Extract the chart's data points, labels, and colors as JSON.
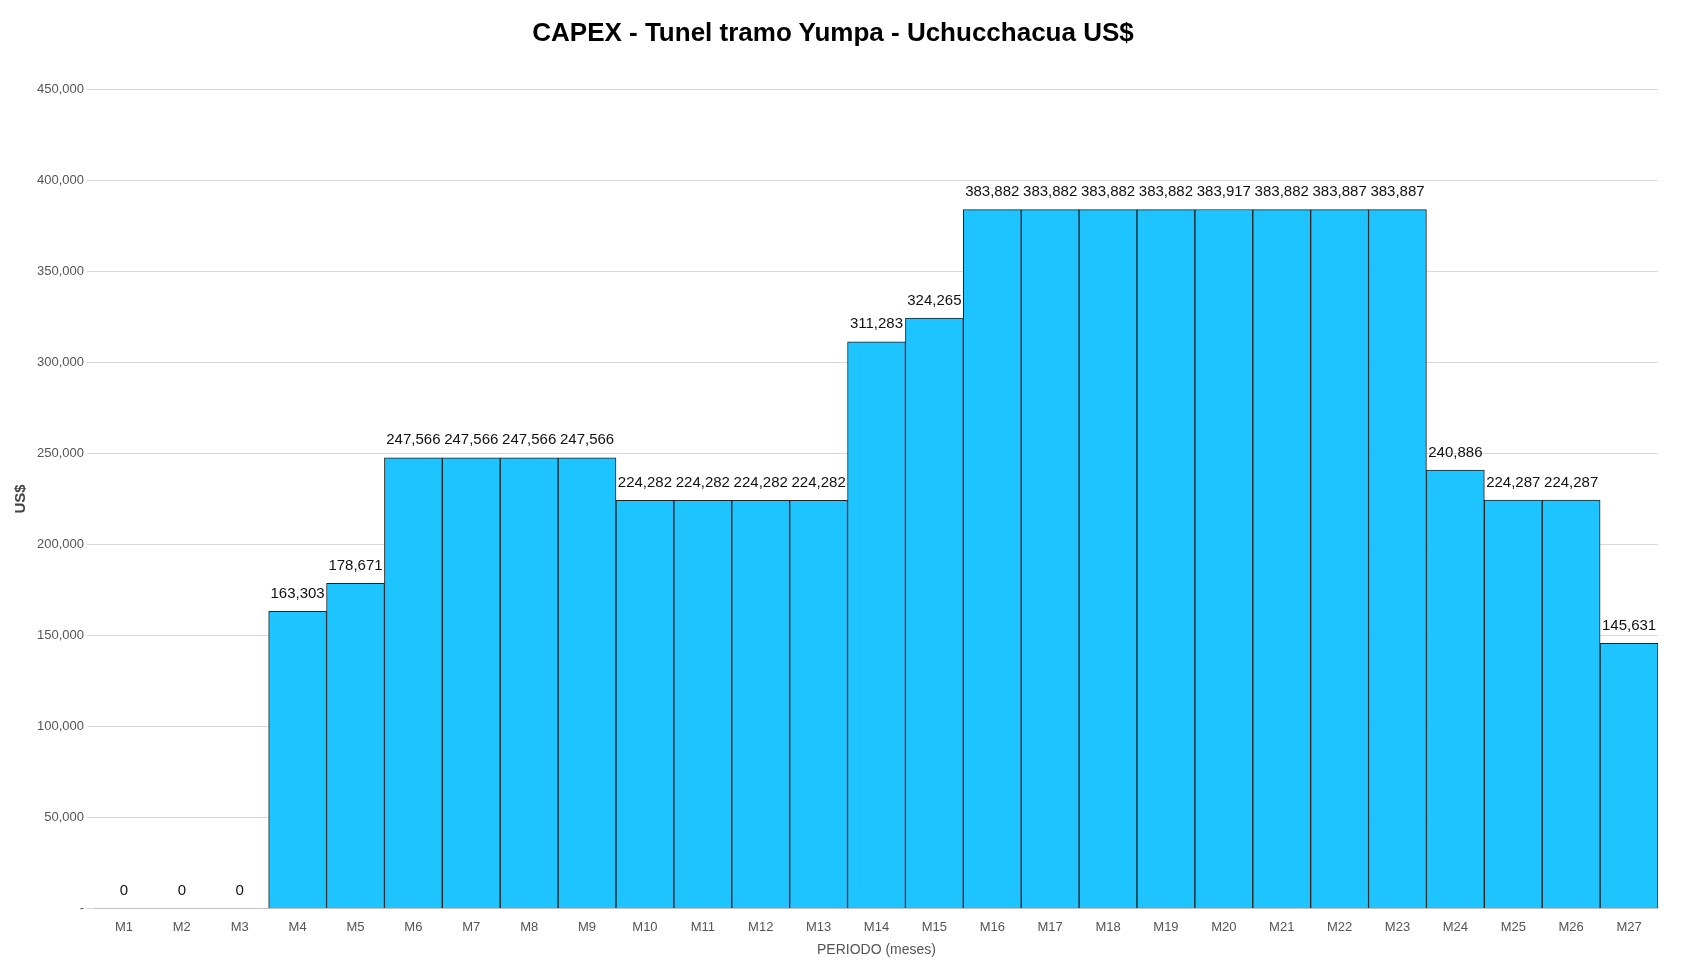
{
  "chart_data": {
    "type": "bar",
    "title": "CAPEX - Tunel tramo Yumpa - Uchucchacua US$",
    "xlabel": "PERIODO (meses)",
    "ylabel": "US$",
    "categories": [
      "M1",
      "M2",
      "M3",
      "M4",
      "M5",
      "M6",
      "M7",
      "M8",
      "M9",
      "M10",
      "M11",
      "M12",
      "M13",
      "M14",
      "M15",
      "M16",
      "M17",
      "M18",
      "M19",
      "M20",
      "M21",
      "M22",
      "M23",
      "M24",
      "M25",
      "M26",
      "M27"
    ],
    "values": [
      0,
      0,
      0,
      163303,
      178671,
      247566,
      247566,
      247566,
      247566,
      224282,
      224282,
      224282,
      224282,
      311283,
      324265,
      383882,
      383882,
      383882,
      383882,
      383917,
      383882,
      383887,
      383887,
      240886,
      224287,
      224287,
      145631
    ],
    "color": "#1ec4ff",
    "ylim": [
      0,
      450000
    ],
    "yticks": [
      {
        "value": 0,
        "label": "-"
      },
      {
        "value": 50000,
        "label": "50,000"
      },
      {
        "value": 100000,
        "label": "100,000"
      },
      {
        "value": 150000,
        "label": "150,000"
      },
      {
        "value": 200000,
        "label": "200,000"
      },
      {
        "value": 250000,
        "label": "250,000"
      },
      {
        "value": 300000,
        "label": "300,000"
      },
      {
        "value": 350000,
        "label": "350,000"
      },
      {
        "value": 400000,
        "label": "400,000"
      },
      {
        "value": 450000,
        "label": "450,000"
      }
    ],
    "value_labels": [
      "0",
      "0",
      "0",
      "163,303",
      "178,671",
      "247,566",
      "247,566",
      "247,566",
      "247,566",
      "224,282",
      "224,282",
      "224,282",
      "224,282",
      "311,283",
      "324,265",
      "383,882",
      "383,882",
      "383,882",
      "383,882",
      "383,917",
      "383,882",
      "383,887",
      "383,887",
      "240,886",
      "224,287",
      "224,287",
      "145,631"
    ],
    "grid": "y",
    "legend": false
  }
}
